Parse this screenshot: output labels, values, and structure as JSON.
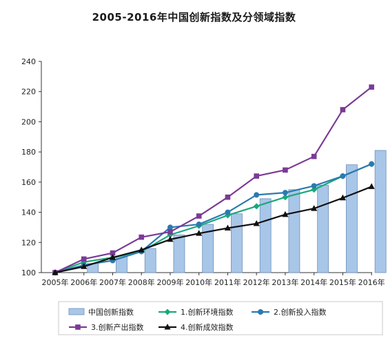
{
  "chart_data": {
    "type": "bar+line",
    "title": "2005-2016年中国创新指数及分领域指数",
    "xlabel": "",
    "ylabel": "",
    "categories": [
      "2005年",
      "2006年",
      "2007年",
      "2008年",
      "2009年",
      "2010年",
      "2011年",
      "2012年",
      "2013年",
      "2014年",
      "2015年",
      "2016年"
    ],
    "ylim": [
      100,
      240
    ],
    "yticks": [
      100,
      120,
      140,
      160,
      180,
      200,
      220,
      240
    ],
    "bar_series": {
      "name": "中国创新指数",
      "color": "#a8c6e8",
      "stroke": "#6d8fb8",
      "values": [
        100,
        106,
        111,
        116,
        125,
        132,
        139,
        149,
        155,
        158,
        171.5,
        181
      ]
    },
    "series": [
      {
        "name": "1.创新环境指数",
        "color": "#1aa87a",
        "marker": "diamond",
        "values": [
          100,
          107,
          110,
          114,
          125,
          131,
          138,
          144,
          150,
          155,
          164,
          172
        ]
      },
      {
        "name": "2.创新投入指数",
        "color": "#2a7ab0",
        "marker": "circle",
        "values": [
          100,
          105,
          108,
          114,
          130,
          132,
          140,
          151.5,
          153,
          157.5,
          164,
          172
        ]
      },
      {
        "name": "3.创新产出指数",
        "color": "#7b3a96",
        "marker": "square",
        "values": [
          100,
          109,
          113,
          123.5,
          127,
          137.5,
          150,
          164,
          168,
          177,
          208,
          223
        ]
      },
      {
        "name": "4.创新成效指数",
        "color": "#111111",
        "marker": "triangle",
        "values": [
          100,
          104,
          110,
          115,
          122,
          126,
          129.5,
          132.5,
          138.5,
          142.5,
          149.5,
          157
        ]
      }
    ],
    "grid": false,
    "legend_placement": "bottom"
  }
}
